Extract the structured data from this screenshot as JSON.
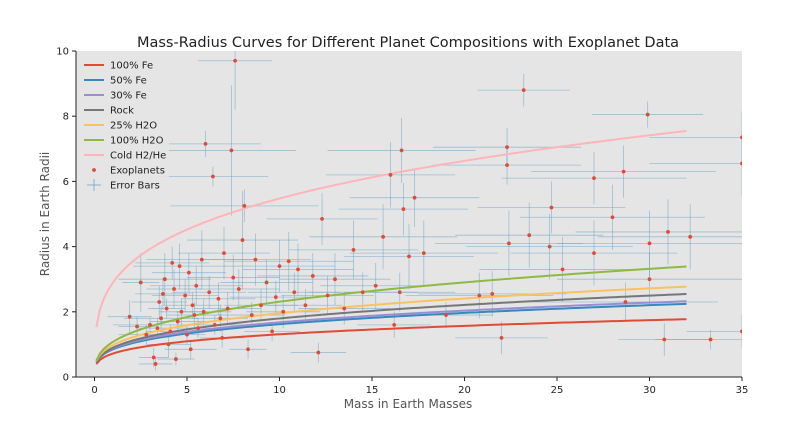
{
  "chart_data": {
    "type": "scatter",
    "title": "Mass-Radius Curves for Different Planet Compositions with Exoplanet Data",
    "xlabel": "Mass in Earth Masses",
    "ylabel": "Radius in Earth Radii",
    "xlim": [
      -1,
      35
    ],
    "ylim": [
      0,
      10
    ],
    "xticks": [
      0,
      5,
      10,
      15,
      20,
      25,
      30,
      35
    ],
    "yticks": [
      0,
      2,
      4,
      6,
      8,
      10
    ],
    "grid": false,
    "legend_position": "top-left",
    "background": "#e5e5e5",
    "curves": [
      {
        "name": "100% Fe",
        "color": "#e24a33",
        "coef": 0.72,
        "exp": 0.26
      },
      {
        "name": "50% Fe",
        "color": "#348abd",
        "coef": 0.85,
        "exp": 0.28
      },
      {
        "name": "30% Fe",
        "color": "#988ed5",
        "coef": 0.88,
        "exp": 0.28
      },
      {
        "name": "Rock",
        "color": "#777777",
        "coef": 0.9,
        "exp": 0.3
      },
      {
        "name": "25% H2O",
        "color": "#fbc15e",
        "coef": 0.98,
        "exp": 0.3
      },
      {
        "name": "100% H2O",
        "color": "#8eba42",
        "coef": 1.08,
        "exp": 0.33
      },
      {
        "name": "Cold H2/He",
        "color": "#ffb5b8",
        "coef": 2.9,
        "exp": 0.276
      }
    ],
    "curve_x_range": [
      0.1,
      32
    ],
    "exoplanets": {
      "name": "Exoplanets",
      "color": "#e24a33",
      "errorbar_name": "Error Bars",
      "errorbar_color": "#5f9ec4",
      "points": [
        {
          "x": 1.9,
          "y": 1.85,
          "xe": 1.2,
          "ye": 0.5
        },
        {
          "x": 2.5,
          "y": 2.9,
          "xe": 1.0,
          "ye": 0.9
        },
        {
          "x": 2.8,
          "y": 1.3,
          "xe": 1.5,
          "ye": 0.3
        },
        {
          "x": 3.0,
          "y": 1.6,
          "xe": 2.0,
          "ye": 0.2
        },
        {
          "x": 3.2,
          "y": 0.6,
          "xe": 0.8,
          "ye": 0.3
        },
        {
          "x": 3.3,
          "y": 0.4,
          "xe": 0.9,
          "ye": 0.2
        },
        {
          "x": 3.4,
          "y": 1.5,
          "xe": 1.0,
          "ye": 0.3
        },
        {
          "x": 3.5,
          "y": 2.3,
          "xe": 1.5,
          "ye": 0.5
        },
        {
          "x": 3.6,
          "y": 1.8,
          "xe": 2.0,
          "ye": 0.4
        },
        {
          "x": 3.8,
          "y": 3.0,
          "xe": 2.5,
          "ye": 0.8
        },
        {
          "x": 3.9,
          "y": 2.1,
          "xe": 1.0,
          "ye": 0.3
        },
        {
          "x": 4.0,
          "y": 1.0,
          "xe": 1.2,
          "ye": 0.4
        },
        {
          "x": 4.1,
          "y": 1.4,
          "xe": 1.3,
          "ye": 0.2
        },
        {
          "x": 4.2,
          "y": 3.5,
          "xe": 2.0,
          "ye": 0.5
        },
        {
          "x": 4.3,
          "y": 2.7,
          "xe": 1.5,
          "ye": 0.6
        },
        {
          "x": 4.4,
          "y": 0.55,
          "xe": 1.0,
          "ye": 0.2
        },
        {
          "x": 4.5,
          "y": 1.7,
          "xe": 1.5,
          "ye": 0.3
        },
        {
          "x": 4.6,
          "y": 3.4,
          "xe": 2.5,
          "ye": 0.7
        },
        {
          "x": 4.7,
          "y": 2.0,
          "xe": 1.2,
          "ye": 0.4
        },
        {
          "x": 4.9,
          "y": 2.5,
          "xe": 1.8,
          "ye": 0.5
        },
        {
          "x": 5.0,
          "y": 1.3,
          "xe": 1.0,
          "ye": 0.3
        },
        {
          "x": 5.1,
          "y": 3.2,
          "xe": 2.0,
          "ye": 0.6
        },
        {
          "x": 5.2,
          "y": 0.85,
          "xe": 1.4,
          "ye": 0.3
        },
        {
          "x": 5.3,
          "y": 2.2,
          "xe": 1.6,
          "ye": 0.4
        },
        {
          "x": 5.4,
          "y": 1.9,
          "xe": 1.5,
          "ye": 0.4
        },
        {
          "x": 5.5,
          "y": 2.8,
          "xe": 2.5,
          "ye": 0.6
        },
        {
          "x": 5.6,
          "y": 1.5,
          "xe": 1.2,
          "ye": 0.3
        },
        {
          "x": 5.8,
          "y": 3.6,
          "xe": 3.0,
          "ye": 0.9
        },
        {
          "x": 6.0,
          "y": 7.15,
          "xe": 3.0,
          "ye": 0.4
        },
        {
          "x": 6.2,
          "y": 2.6,
          "xe": 2.0,
          "ye": 0.5
        },
        {
          "x": 6.4,
          "y": 6.15,
          "xe": 3.0,
          "ye": 0.3
        },
        {
          "x": 6.5,
          "y": 1.6,
          "xe": 1.5,
          "ye": 0.3
        },
        {
          "x": 6.7,
          "y": 2.4,
          "xe": 2.0,
          "ye": 0.5
        },
        {
          "x": 6.9,
          "y": 1.2,
          "xe": 1.2,
          "ye": 0.3
        },
        {
          "x": 7.0,
          "y": 3.8,
          "xe": 2.5,
          "ye": 0.8
        },
        {
          "x": 7.2,
          "y": 2.1,
          "xe": 1.8,
          "ye": 0.5
        },
        {
          "x": 7.4,
          "y": 6.95,
          "xe": 3.5,
          "ye": 2.0
        },
        {
          "x": 7.6,
          "y": 9.7,
          "xe": 2.0,
          "ye": 1.5
        },
        {
          "x": 7.8,
          "y": 2.7,
          "xe": 2.2,
          "ye": 0.6
        },
        {
          "x": 8.0,
          "y": 4.2,
          "xe": 3.0,
          "ye": 1.5
        },
        {
          "x": 8.1,
          "y": 5.25,
          "xe": 4.0,
          "ye": 0.5
        },
        {
          "x": 8.3,
          "y": 0.85,
          "xe": 1.0,
          "ye": 0.3
        },
        {
          "x": 8.5,
          "y": 1.9,
          "xe": 1.8,
          "ye": 0.4
        },
        {
          "x": 8.7,
          "y": 3.6,
          "xe": 3.0,
          "ye": 0.8
        },
        {
          "x": 9.0,
          "y": 2.2,
          "xe": 2.0,
          "ye": 0.5
        },
        {
          "x": 9.3,
          "y": 2.9,
          "xe": 2.5,
          "ye": 0.7
        },
        {
          "x": 9.6,
          "y": 1.4,
          "xe": 1.5,
          "ye": 0.3
        },
        {
          "x": 10.0,
          "y": 3.4,
          "xe": 3.0,
          "ye": 0.8
        },
        {
          "x": 10.2,
          "y": 2.0,
          "xe": 2.0,
          "ye": 0.5
        },
        {
          "x": 10.5,
          "y": 3.55,
          "xe": 3.5,
          "ye": 0.9
        },
        {
          "x": 10.8,
          "y": 2.6,
          "xe": 2.5,
          "ye": 0.6
        },
        {
          "x": 11.0,
          "y": 3.3,
          "xe": 3.0,
          "ye": 0.8
        },
        {
          "x": 11.4,
          "y": 2.2,
          "xe": 2.0,
          "ye": 0.5
        },
        {
          "x": 11.8,
          "y": 3.1,
          "xe": 3.0,
          "ye": 0.7
        },
        {
          "x": 12.1,
          "y": 0.75,
          "xe": 1.5,
          "ye": 0.3
        },
        {
          "x": 12.3,
          "y": 4.85,
          "xe": 3.0,
          "ye": 0.8
        },
        {
          "x": 12.6,
          "y": 2.5,
          "xe": 2.5,
          "ye": 0.6
        },
        {
          "x": 13.0,
          "y": 3.0,
          "xe": 3.0,
          "ye": 0.8
        },
        {
          "x": 13.5,
          "y": 2.1,
          "xe": 2.5,
          "ye": 0.5
        },
        {
          "x": 14.0,
          "y": 3.9,
          "xe": 3.5,
          "ye": 0.9
        },
        {
          "x": 14.5,
          "y": 2.6,
          "xe": 3.0,
          "ye": 0.6
        },
        {
          "x": 15.2,
          "y": 2.8,
          "xe": 3.0,
          "ye": 0.7
        },
        {
          "x": 15.6,
          "y": 4.3,
          "xe": 4.0,
          "ye": 1.0
        },
        {
          "x": 16.0,
          "y": 6.2,
          "xe": 3.5,
          "ye": 1.0
        },
        {
          "x": 16.2,
          "y": 1.6,
          "xe": 2.0,
          "ye": 0.4
        },
        {
          "x": 16.5,
          "y": 2.6,
          "xe": 3.0,
          "ye": 0.6
        },
        {
          "x": 16.7,
          "y": 5.15,
          "xe": 3.5,
          "ye": 0.8
        },
        {
          "x": 17.0,
          "y": 3.7,
          "xe": 3.5,
          "ye": 1.0
        },
        {
          "x": 17.3,
          "y": 5.5,
          "xe": 3.5,
          "ye": 0.9
        },
        {
          "x": 17.8,
          "y": 3.8,
          "xe": 4.0,
          "ye": 1.0
        },
        {
          "x": 16.6,
          "y": 6.95,
          "xe": 4.0,
          "ye": 1.0
        },
        {
          "x": 19.0,
          "y": 1.9,
          "xe": 2.5,
          "ye": 0.4
        },
        {
          "x": 20.8,
          "y": 2.5,
          "xe": 4.0,
          "ye": 0.7
        },
        {
          "x": 21.5,
          "y": 2.55,
          "xe": 4.0,
          "ye": 0.7
        },
        {
          "x": 22.0,
          "y": 1.2,
          "xe": 2.5,
          "ye": 0.5
        },
        {
          "x": 22.3,
          "y": 7.05,
          "xe": 4.0,
          "ye": 0.6
        },
        {
          "x": 22.3,
          "y": 6.5,
          "xe": 4.0,
          "ye": 0.6
        },
        {
          "x": 22.4,
          "y": 4.1,
          "xe": 4.0,
          "ye": 1.0
        },
        {
          "x": 23.2,
          "y": 8.8,
          "xe": 2.5,
          "ye": 0.5
        },
        {
          "x": 23.5,
          "y": 4.35,
          "xe": 4.0,
          "ye": 1.0
        },
        {
          "x": 24.6,
          "y": 4.0,
          "xe": 4.5,
          "ye": 1.0
        },
        {
          "x": 24.7,
          "y": 5.2,
          "xe": 4.0,
          "ye": 0.8
        },
        {
          "x": 25.3,
          "y": 3.3,
          "xe": 4.5,
          "ye": 1.0
        },
        {
          "x": 27.0,
          "y": 6.1,
          "xe": 5.0,
          "ye": 0.8
        },
        {
          "x": 27.0,
          "y": 3.8,
          "xe": 4.5,
          "ye": 1.0
        },
        {
          "x": 28.0,
          "y": 4.9,
          "xe": 5.0,
          "ye": 1.0
        },
        {
          "x": 28.6,
          "y": 6.3,
          "xe": 5.0,
          "ye": 0.8
        },
        {
          "x": 28.7,
          "y": 2.3,
          "xe": 5.0,
          "ye": 0.6
        },
        {
          "x": 29.9,
          "y": 8.05,
          "xe": 3.0,
          "ye": 0.4
        },
        {
          "x": 30.0,
          "y": 4.1,
          "xe": 5.0,
          "ye": 1.0
        },
        {
          "x": 30.0,
          "y": 3.0,
          "xe": 5.0,
          "ye": 0.8
        },
        {
          "x": 30.8,
          "y": 1.15,
          "xe": 2.5,
          "ye": 0.5
        },
        {
          "x": 31.0,
          "y": 4.45,
          "xe": 5.0,
          "ye": 1.0
        },
        {
          "x": 32.2,
          "y": 4.3,
          "xe": 5.0,
          "ye": 1.0
        },
        {
          "x": 33.3,
          "y": 1.15,
          "xe": 3.0,
          "ye": 0.3
        },
        {
          "x": 35.0,
          "y": 7.35,
          "xe": 5.0,
          "ye": 0.8
        },
        {
          "x": 35.0,
          "y": 6.55,
          "xe": 5.0,
          "ye": 1.0
        },
        {
          "x": 35.0,
          "y": 1.4,
          "xe": 3.0,
          "ye": 0.5
        },
        {
          "x": 2.3,
          "y": 1.55,
          "xe": 1.0,
          "ye": 0.3
        },
        {
          "x": 5.9,
          "y": 2.0,
          "xe": 1.5,
          "ye": 0.4
        },
        {
          "x": 6.8,
          "y": 1.8,
          "xe": 1.5,
          "ye": 0.4
        },
        {
          "x": 9.8,
          "y": 2.45,
          "xe": 2.5,
          "ye": 0.5
        },
        {
          "x": 7.5,
          "y": 3.05,
          "xe": 2.5,
          "ye": 0.7
        },
        {
          "x": 3.7,
          "y": 2.55,
          "xe": 1.5,
          "ye": 0.5
        }
      ]
    }
  }
}
